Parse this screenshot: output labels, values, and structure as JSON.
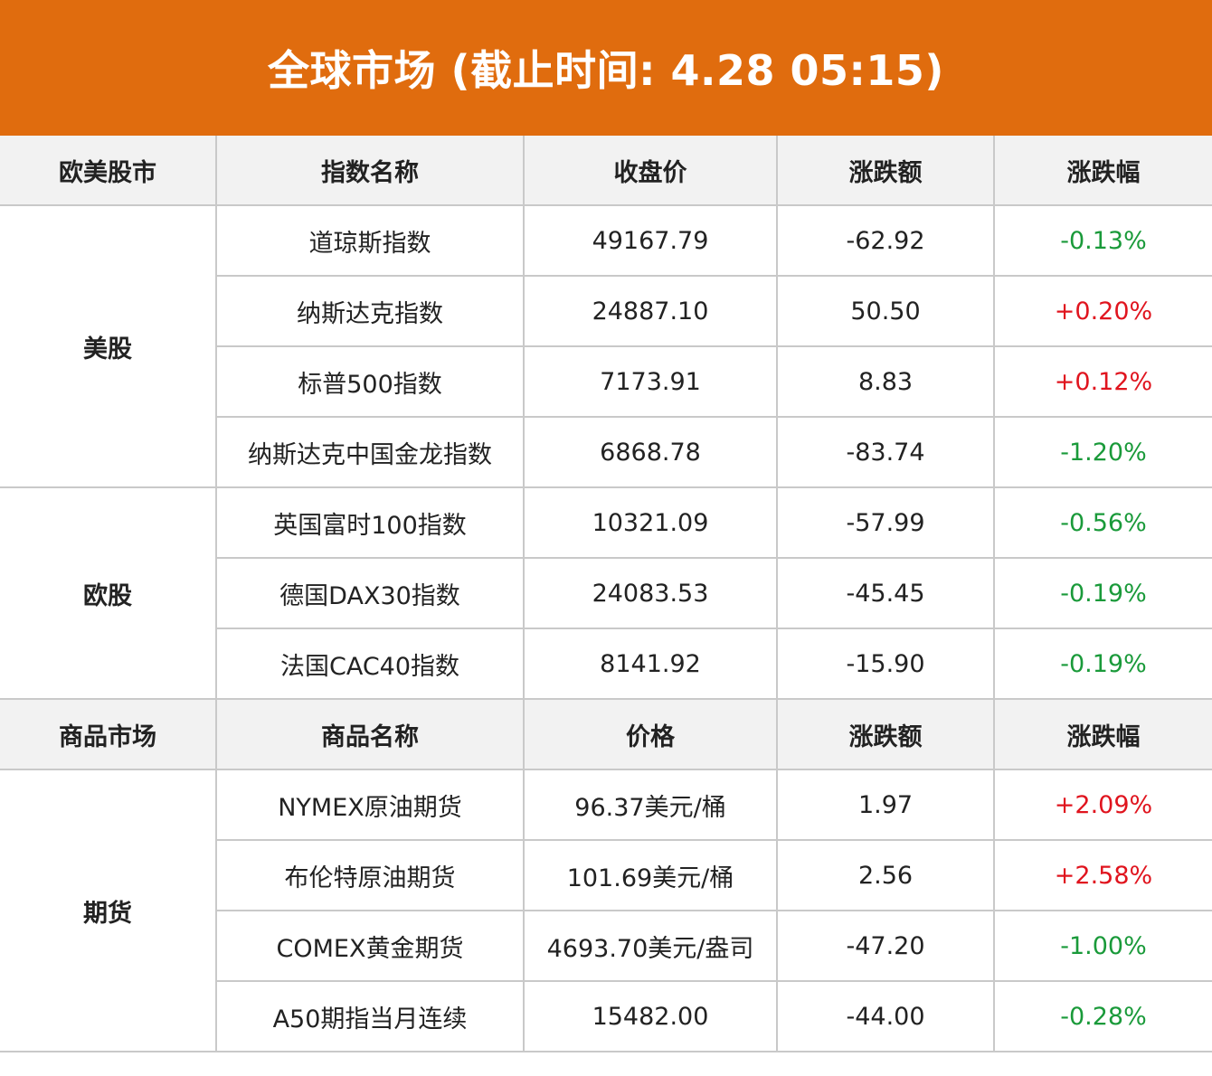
{
  "title": "全球市场 (截止时间: 4.28 05:15)",
  "colors": {
    "banner": "#e06c0e",
    "up": "#e0141e",
    "down": "#1a9a3a",
    "header_bg": "#f2f2f2",
    "border": "#c9c9c9"
  },
  "stock_header": [
    "欧美股市",
    "指数名称",
    "收盘价",
    "涨跌额",
    "涨跌幅"
  ],
  "us_group": "美股",
  "us_rows": [
    {
      "name": "道琼斯指数",
      "price": "49167.79",
      "change": "-62.92",
      "pct": "-0.13%"
    },
    {
      "name": "纳斯达克指数",
      "price": "24887.10",
      "change": "50.50",
      "pct": "+0.20%"
    },
    {
      "name": "标普500指数",
      "price": "7173.91",
      "change": "8.83",
      "pct": "+0.12%"
    },
    {
      "name": "纳斯达克中国金龙指数",
      "price": "6868.78",
      "change": "-83.74",
      "pct": "-1.20%"
    }
  ],
  "eu_group": "欧股",
  "eu_rows": [
    {
      "name": "英国富时100指数",
      "price": "10321.09",
      "change": "-57.99",
      "pct": "-0.56%"
    },
    {
      "name": "德国DAX30指数",
      "price": "24083.53",
      "change": "-45.45",
      "pct": "-0.19%"
    },
    {
      "name": "法国CAC40指数",
      "price": "8141.92",
      "change": "-15.90",
      "pct": "-0.19%"
    }
  ],
  "commodity_header": [
    "商品市场",
    "商品名称",
    "价格",
    "涨跌额",
    "涨跌幅"
  ],
  "futures_group": "期货",
  "futures_rows": [
    {
      "name": "NYMEX原油期货",
      "price": "96.37美元/桶",
      "change": "1.97",
      "pct": "+2.09%"
    },
    {
      "name": "布伦特原油期货",
      "price": "101.69美元/桶",
      "change": "2.56",
      "pct": "+2.58%"
    },
    {
      "name": "COMEX黄金期货",
      "price": "4693.70美元/盎司",
      "change": "-47.20",
      "pct": "-1.00%"
    },
    {
      "name": "A50期指当月连续",
      "price": "15482.00",
      "change": "-44.00",
      "pct": "-0.28%"
    }
  ]
}
